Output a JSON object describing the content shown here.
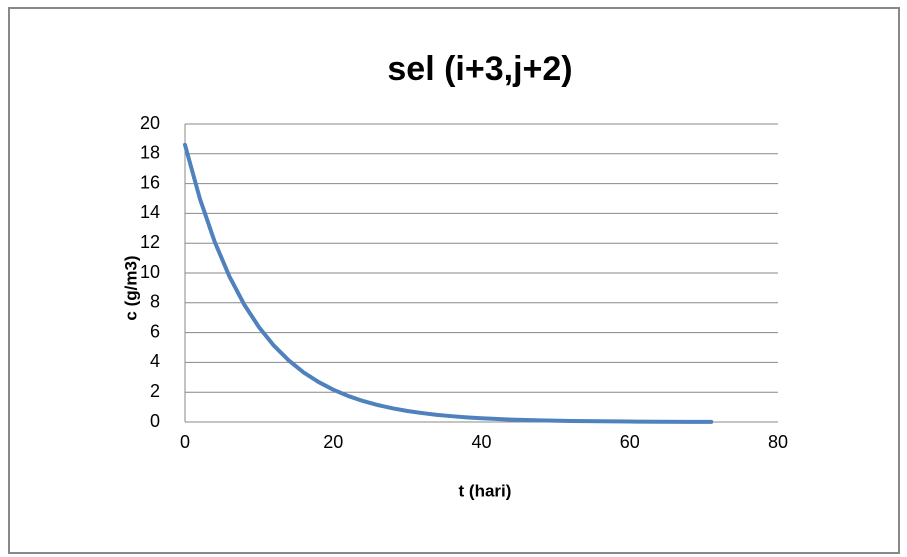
{
  "chart_data": {
    "type": "line",
    "title": "sel (i+3,j+2)",
    "x_label": "t (hari)",
    "y_label": "c (g/m3)",
    "x": [
      0,
      2,
      4,
      6,
      8,
      10,
      12,
      14,
      16,
      18,
      20,
      22,
      24,
      26,
      28,
      30,
      32,
      34,
      36,
      38,
      40,
      44,
      48,
      52,
      56,
      60,
      64,
      68,
      71
    ],
    "series": [
      {
        "color": "#4f81bd",
        "values": [
          18.6,
          15.0,
          12.1,
          9.76,
          7.87,
          6.35,
          5.12,
          4.13,
          3.33,
          2.69,
          2.17,
          1.75,
          1.41,
          1.14,
          0.92,
          0.74,
          0.6,
          0.48,
          0.39,
          0.31,
          0.25,
          0.16,
          0.11,
          0.07,
          0.05,
          0.03,
          0.02,
          0.01,
          0.01
        ]
      }
    ],
    "xlim": [
      0,
      80
    ],
    "xticks": [
      0,
      20,
      40,
      60,
      80
    ],
    "ylim": [
      0,
      20
    ],
    "yticks": [
      0,
      2,
      4,
      6,
      8,
      10,
      12,
      14,
      16,
      18,
      20
    ],
    "grid": true
  }
}
